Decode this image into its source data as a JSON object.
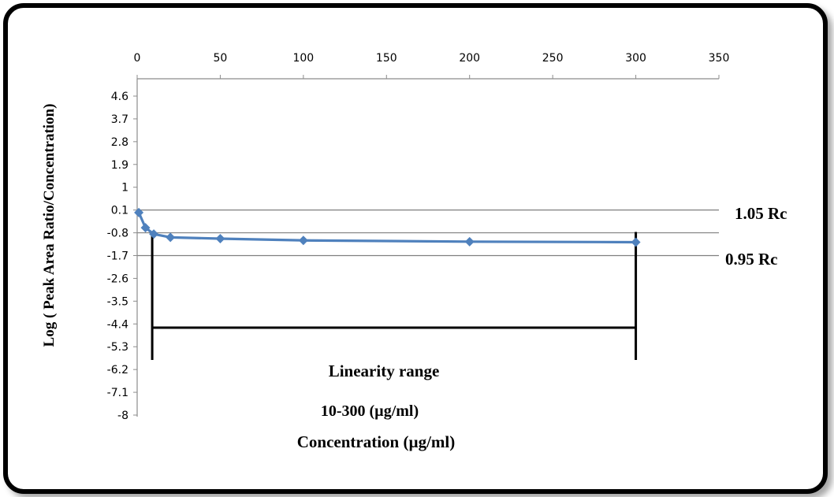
{
  "chart_data": {
    "type": "line",
    "title": "",
    "xlabel": "Concentration  (µg/ml)",
    "ylabel": "Log ( Peak Area Ratio/Concentration)",
    "xlim": [
      0,
      350
    ],
    "ylim": [
      -8,
      4.6
    ],
    "x_ticks": [
      "0",
      "50",
      "100",
      "150",
      "200",
      "250",
      "300",
      "350"
    ],
    "y_ticks": [
      "4.6",
      "3.7",
      "2.8",
      "1.9",
      "1",
      "0.1",
      "-0.8",
      "-1.7",
      "-2.6",
      "-3.5",
      "-4.4",
      "-5.3",
      "-6.2",
      "-7.1",
      "-8"
    ],
    "grid": "horizontal",
    "series": [
      {
        "color": "#4f81bd",
        "x": [
          1,
          5,
          10,
          20,
          50,
          100,
          200,
          300
        ],
        "y": [
          0.0,
          -0.6,
          -0.85,
          -0.98,
          -1.03,
          -1.1,
          -1.15,
          -1.17
        ]
      }
    ],
    "reference_lines": [
      {
        "label": "1.05 Rc",
        "y": 0.1
      },
      {
        "label": "0.95 Rc",
        "y": -1.7
      }
    ],
    "linearity_range": {
      "label": "Linearity range",
      "range_text": "10-300  (µg/ml)",
      "x_start": 10,
      "x_end": 300
    }
  }
}
